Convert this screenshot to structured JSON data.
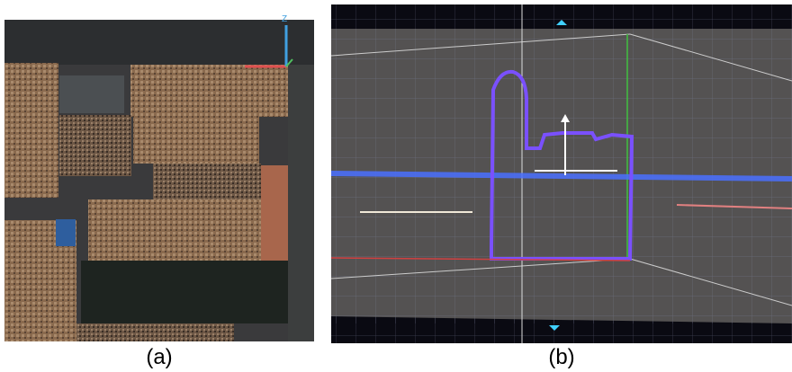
{
  "panels": [
    {
      "label": "(a)",
      "axis_label": "Z"
    },
    {
      "label": "(b)"
    }
  ]
}
